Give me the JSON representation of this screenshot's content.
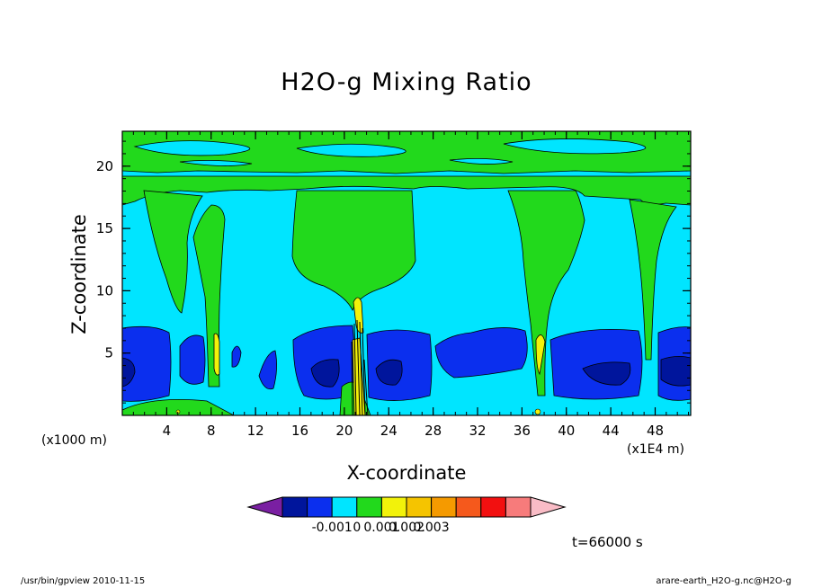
{
  "chart_data": {
    "type": "heatmap",
    "title": "H2O-g Mixing Ratio",
    "xlabel": "X-coordinate",
    "ylabel": "Z-coordinate",
    "x_unit_left": "(x1000 m)",
    "x_unit_right": "(x1E4 m)",
    "x_ticks": [
      4,
      8,
      12,
      16,
      20,
      24,
      28,
      32,
      36,
      40,
      44,
      48
    ],
    "y_ticks": [
      5,
      10,
      15,
      20
    ],
    "xlim": [
      0,
      51.2
    ],
    "ylim": [
      0,
      22.8
    ],
    "colorbar": {
      "colors": [
        "#7a1fa2",
        "#00159c",
        "#0b2fee",
        "#00e5ff",
        "#22d91c",
        "#f2f20a",
        "#f5c400",
        "#f59a00",
        "#f5591c",
        "#f21010",
        "#f77b7b",
        "#f9bcc6"
      ],
      "tick_labels": [
        "-0.001",
        "0",
        "0.001",
        "0.002",
        "0.003"
      ]
    },
    "time_label": "t=66000 s"
  },
  "footer": {
    "left": "/usr/bin/gpview  2010-11-15",
    "right": "arare-earth_H2O-g.nc@H2O-g"
  }
}
